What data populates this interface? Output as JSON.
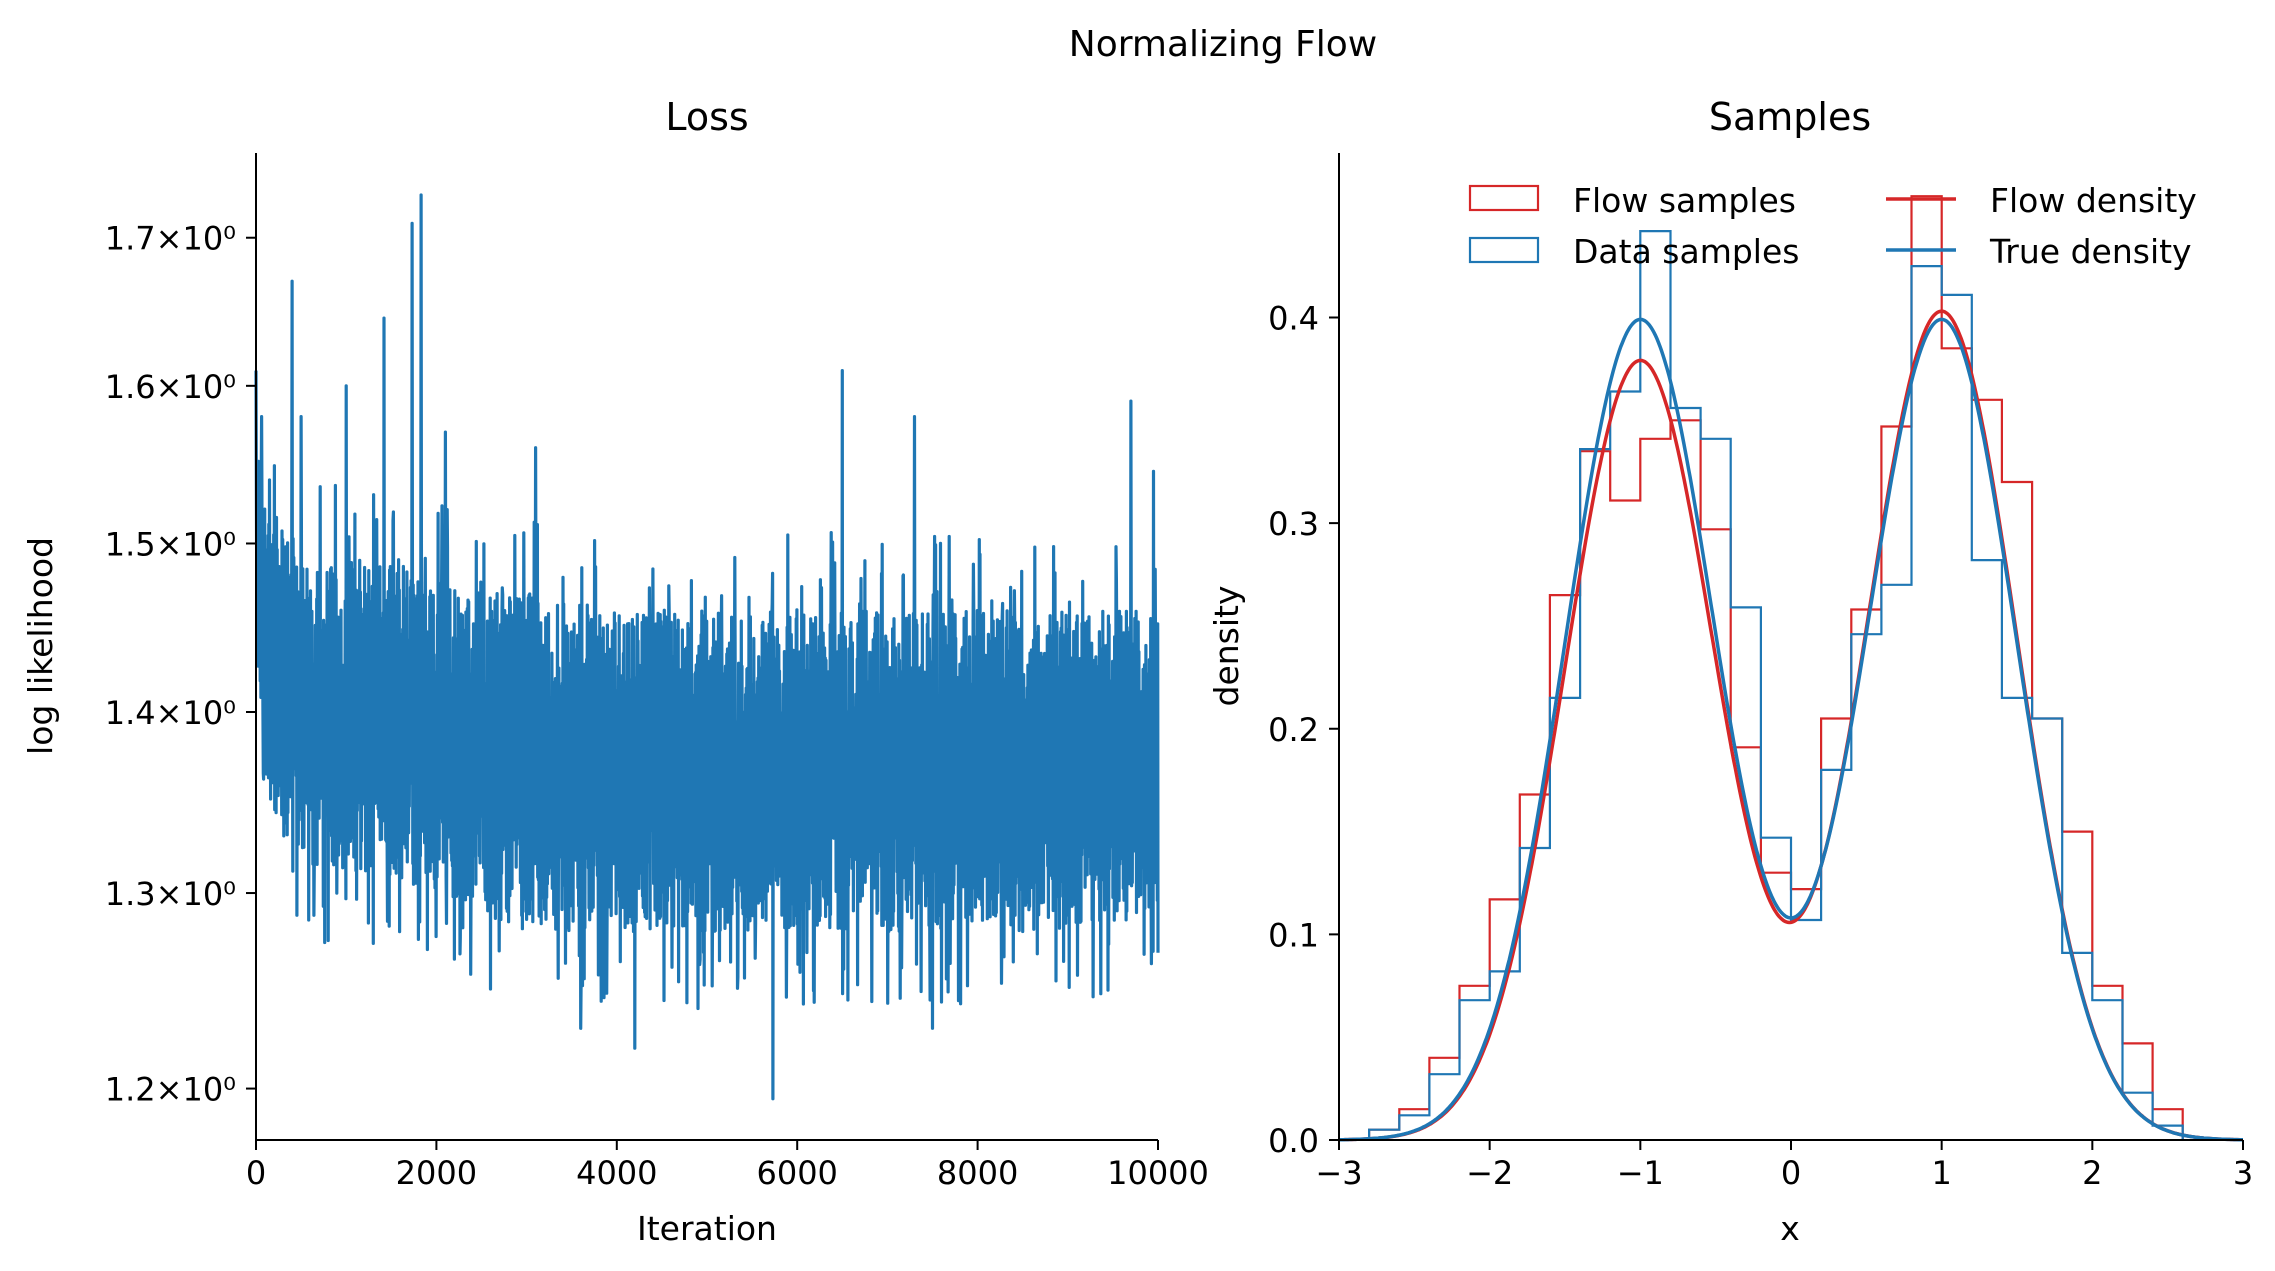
{
  "figure": {
    "title": "Normalizing Flow"
  },
  "colors": {
    "blue": "#1f77b4",
    "red": "#d62728"
  },
  "chart_data": [
    {
      "type": "line",
      "title": "Loss",
      "xlabel": "Iteration",
      "ylabel": "log likelihood",
      "xlim": [
        0,
        10000
      ],
      "ylim": [
        1.175,
        1.76
      ],
      "yscale": "log",
      "xticks": [
        0,
        2000,
        4000,
        6000,
        8000,
        10000
      ],
      "xtick_labels": [
        "0",
        "2000",
        "4000",
        "6000",
        "8000",
        "10000"
      ],
      "yticks": [
        1.2,
        1.3,
        1.4,
        1.5,
        1.6,
        1.7
      ],
      "ytick_labels": [
        "1.2×10⁰",
        "1.3×10⁰",
        "1.4×10⁰",
        "1.5×10⁰",
        "1.6×10⁰",
        "1.7×10⁰"
      ],
      "grid": false,
      "series": [
        {
          "color": "#1f77b4",
          "num_points": 10000,
          "band_x": [
            0,
            100,
            200,
            300,
            500,
            800,
            1000,
            1500,
            2000,
            2500,
            3000,
            4000,
            5000,
            6000,
            7000,
            8000,
            9000,
            10000
          ],
          "band_low": [
            1.42,
            1.36,
            1.33,
            1.32,
            1.31,
            1.3,
            1.3,
            1.3,
            1.29,
            1.28,
            1.27,
            1.27,
            1.27,
            1.27,
            1.27,
            1.27,
            1.27,
            1.28
          ],
          "band_high": [
            1.57,
            1.53,
            1.52,
            1.51,
            1.5,
            1.49,
            1.49,
            1.49,
            1.48,
            1.47,
            1.47,
            1.46,
            1.46,
            1.46,
            1.46,
            1.46,
            1.46,
            1.46
          ],
          "spikes": [
            {
              "x": 0,
              "y": 1.61
            },
            {
              "x": 60,
              "y": 1.58
            },
            {
              "x": 400,
              "y": 1.67
            },
            {
              "x": 500,
              "y": 1.58
            },
            {
              "x": 1000,
              "y": 1.6
            },
            {
              "x": 1420,
              "y": 1.645
            },
            {
              "x": 1730,
              "y": 1.71
            },
            {
              "x": 1830,
              "y": 1.73
            },
            {
              "x": 2100,
              "y": 1.57
            },
            {
              "x": 3100,
              "y": 1.56
            },
            {
              "x": 6500,
              "y": 1.61
            },
            {
              "x": 7300,
              "y": 1.58
            },
            {
              "x": 9700,
              "y": 1.59
            },
            {
              "x": 9950,
              "y": 1.545
            },
            {
              "x": 800,
              "y": 1.275
            },
            {
              "x": 4200,
              "y": 1.22
            },
            {
              "x": 5730,
              "y": 1.195
            },
            {
              "x": 3600,
              "y": 1.23
            },
            {
              "x": 4900,
              "y": 1.24
            },
            {
              "x": 7500,
              "y": 1.23
            }
          ]
        }
      ]
    },
    {
      "type": "histogram",
      "title": "Samples",
      "xlabel": "x",
      "ylabel": "density",
      "xlim": [
        -3,
        3
      ],
      "ylim": [
        0,
        0.48
      ],
      "xticks": [
        -3,
        -2,
        -1,
        0,
        1,
        2,
        3
      ],
      "xtick_labels": [
        "−3",
        "−2",
        "−1",
        "0",
        "1",
        "2",
        "3"
      ],
      "yticks": [
        0.0,
        0.1,
        0.2,
        0.3,
        0.4
      ],
      "ytick_labels": [
        "0.0",
        "0.1",
        "0.2",
        "0.3",
        "0.4"
      ],
      "legend": {
        "placement": "top-right",
        "columns": 2
      },
      "bin_edges": [
        -2.8,
        -2.6,
        -2.4,
        -2.2,
        -2.0,
        -1.8,
        -1.6,
        -1.4,
        -1.2,
        -1.0,
        -0.8,
        -0.6,
        -0.4,
        -0.2,
        0.0,
        0.2,
        0.4,
        0.6,
        0.8,
        1.0,
        1.2,
        1.4,
        1.6,
        1.8,
        2.0,
        2.2,
        2.4,
        2.6
      ],
      "series": [
        {
          "name": "Flow samples",
          "kind": "hist",
          "color": "#d62728",
          "values": [
            0.005,
            0.015,
            0.04,
            0.075,
            0.117,
            0.168,
            0.265,
            0.335,
            0.311,
            0.341,
            0.35,
            0.297,
            0.191,
            0.13,
            0.122,
            0.205,
            0.258,
            0.347,
            0.459,
            0.385,
            0.36,
            0.32,
            0.205,
            0.15,
            0.075,
            0.047,
            0.015
          ]
        },
        {
          "name": "Data samples",
          "kind": "hist",
          "color": "#1f77b4",
          "values": [
            0.005,
            0.012,
            0.032,
            0.068,
            0.082,
            0.142,
            0.215,
            0.336,
            0.364,
            0.442,
            0.356,
            0.341,
            0.259,
            0.147,
            0.107,
            0.18,
            0.246,
            0.27,
            0.425,
            0.411,
            0.282,
            0.215,
            0.205,
            0.091,
            0.068,
            0.023,
            0.007
          ]
        },
        {
          "name": "Flow density",
          "kind": "line",
          "color": "#d62728",
          "mixture": {
            "means": [
              -1.0,
              1.0
            ],
            "weights": [
              0.475,
              0.505
            ],
            "sigma": 0.5
          }
        },
        {
          "name": "True density",
          "kind": "line",
          "color": "#1f77b4",
          "mixture": {
            "means": [
              -1.0,
              1.0
            ],
            "weights": [
              0.5,
              0.5
            ],
            "sigma": 0.5
          }
        }
      ]
    }
  ]
}
